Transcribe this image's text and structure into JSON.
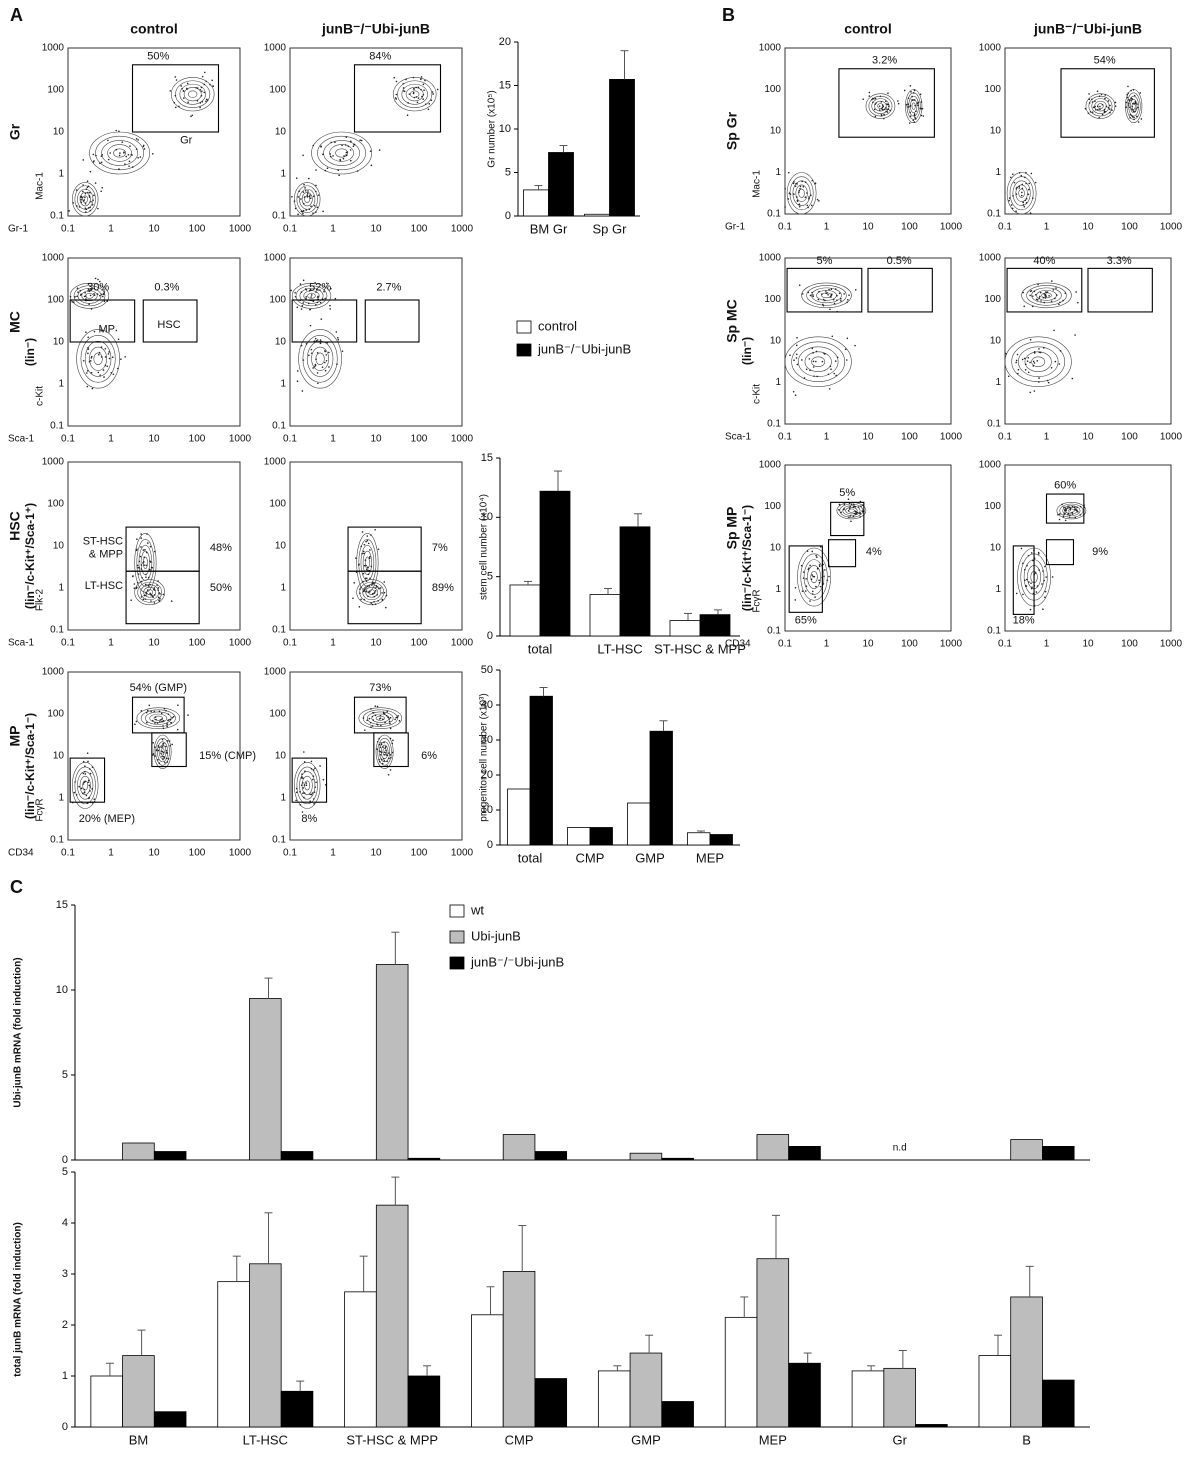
{
  "panels": {
    "a": "A",
    "b": "B",
    "c": "C"
  },
  "columns": {
    "control": "control",
    "junb": "junB⁻/⁻Ubi-junB"
  },
  "log_ticks": [
    0.1,
    1,
    10,
    100,
    1000
  ],
  "flow_plots": [
    {
      "row_label": "Gr",
      "y_axis": "Mac-1",
      "x_axis": "Gr-1",
      "control": [
        "50%",
        "Gr"
      ],
      "junb": [
        "84%"
      ]
    },
    {
      "row_label": "MC",
      "row_sub": "(lin⁻)",
      "y_axis": "c-Kit",
      "x_axis": "Sca-1",
      "control": [
        "30%",
        "0.3%",
        "MP",
        "HSC"
      ],
      "junb": [
        "52%",
        "2.7%"
      ]
    },
    {
      "row_label": "HSC",
      "row_sub": "(lin⁻/c-Kit⁺/Sca-1⁺)",
      "y_axis": "Flk-2",
      "x_axis": "Sca-1",
      "control": [
        "ST-HSC",
        "& MPP",
        "48%",
        "LT-HSC",
        "50%"
      ],
      "junb": [
        "7%",
        "89%"
      ]
    },
    {
      "row_label": "MP",
      "row_sub": "(lin⁻/c-Kit⁺/Sca-1⁻)",
      "y_axis": "FcγR",
      "x_axis": "CD34",
      "control": [
        "54% (GMP)",
        "15% (CMP)",
        "20% (MEP)"
      ],
      "junb": [
        "73%",
        "6%",
        "8%"
      ]
    },
    {
      "row_label": "Sp Gr",
      "y_axis": "Mac-1",
      "x_axis": "Gr-1",
      "control": [
        "3.2%"
      ],
      "junb": [
        "54%"
      ]
    },
    {
      "row_label": "Sp MC",
      "row_sub": "(lin⁻)",
      "y_axis": "c-Kit",
      "x_axis": "Sca-1",
      "control": [
        "5%",
        "0.5%"
      ],
      "junb": [
        "40%",
        "3.3%"
      ]
    },
    {
      "row_label": "Sp MP",
      "row_sub": "(lin⁻/c-Kit⁺/Sca-1⁻)",
      "y_axis": "FcγR",
      "x_axis": "CD34",
      "control": [
        "5%",
        "4%",
        "65%"
      ],
      "junb": [
        "60%",
        "9%",
        "18%"
      ]
    }
  ],
  "chart_data": [
    {
      "type": "bar",
      "y_label": "Gr number (x10⁵)",
      "categories": [
        "BM Gr",
        "Sp Gr"
      ],
      "ylim": [
        0,
        20
      ],
      "yticks": [
        0,
        5,
        10,
        15,
        20
      ],
      "series": [
        {
          "name": "control",
          "color": "#ffffff",
          "values": [
            3,
            0.2
          ],
          "errors": [
            0.5,
            null
          ]
        },
        {
          "name": "junB⁻/⁻Ubi-junB",
          "color": "#000000",
          "values": [
            7.3,
            15.7
          ],
          "errors": [
            0.8,
            3.3
          ]
        }
      ]
    },
    {
      "type": "bar",
      "y_label": "stem cell number (x10⁴)",
      "categories": [
        "total",
        "LT-HSC",
        "ST-HSC & MPP"
      ],
      "ylim": [
        0,
        15
      ],
      "yticks": [
        0,
        5,
        10,
        15
      ],
      "series": [
        {
          "color": "#ffffff",
          "values": [
            4.3,
            3.5,
            1.3
          ],
          "errors": [
            0.3,
            0.5,
            0.6
          ]
        },
        {
          "color": "#000000",
          "values": [
            12.2,
            9.2,
            1.8
          ],
          "errors": [
            1.7,
            1.1,
            0.4
          ]
        }
      ]
    },
    {
      "type": "bar",
      "y_label": "progenitor cell number (x10³)",
      "categories": [
        "total",
        "CMP",
        "GMP",
        "MEP"
      ],
      "ylim": [
        0,
        50
      ],
      "yticks": [
        0,
        10,
        20,
        30,
        40,
        50
      ],
      "series": [
        {
          "color": "#ffffff",
          "values": [
            16,
            5,
            12,
            3.5
          ],
          "errors": [
            null,
            null,
            null,
            0.5
          ]
        },
        {
          "color": "#000000",
          "values": [
            42.5,
            5,
            32.5,
            3
          ],
          "errors": [
            2.5,
            null,
            3,
            null
          ]
        }
      ]
    },
    {
      "type": "bar",
      "y_label": "Ubi-junB mRNA (fold induction)",
      "annotation": "n.d",
      "ylim": [
        0,
        15
      ],
      "yticks": [
        0,
        5,
        10,
        15
      ],
      "series": [
        {
          "name": "wt",
          "color": "#ffffff",
          "values": [
            null,
            null,
            null,
            null,
            null,
            null,
            null,
            null
          ]
        },
        {
          "name": "Ubi-junB",
          "color": "#bdbdbd",
          "values": [
            1,
            9.5,
            11.5,
            1.5,
            0.4,
            1.5,
            null,
            1.2
          ],
          "errors": [
            null,
            1.2,
            1.9,
            null,
            null,
            null,
            null,
            null
          ]
        },
        {
          "name": "junB⁻/⁻Ubi-junB",
          "color": "#000000",
          "values": [
            0.5,
            0.5,
            0.1,
            0.5,
            0.1,
            0.8,
            null,
            0.8
          ]
        }
      ]
    },
    {
      "type": "bar",
      "y_label": "total junB mRNA (fold induction)",
      "categories": [
        "BM",
        "LT-HSC",
        "ST-HSC & MPP",
        "CMP",
        "GMP",
        "MEP",
        "Gr",
        "B"
      ],
      "ylim": [
        0,
        5
      ],
      "yticks": [
        0,
        1,
        2,
        3,
        4,
        5
      ],
      "series": [
        {
          "color": "#ffffff",
          "values": [
            1,
            2.85,
            2.65,
            2.2,
            1.1,
            2.15,
            1.1,
            1.4
          ],
          "errors": [
            0.25,
            0.5,
            0.7,
            0.55,
            0.1,
            0.4,
            0.1,
            0.4
          ]
        },
        {
          "color": "#bdbdbd",
          "values": [
            1.4,
            3.2,
            4.35,
            3.05,
            1.45,
            3.3,
            1.15,
            2.55
          ],
          "errors": [
            0.5,
            1,
            0.55,
            0.9,
            0.35,
            0.85,
            0.35,
            0.6
          ]
        },
        {
          "color": "#000000",
          "values": [
            0.3,
            0.7,
            1,
            0.95,
            0.5,
            1.25,
            0.05,
            0.92
          ],
          "errors": [
            null,
            0.2,
            0.2,
            null,
            null,
            0.2,
            null,
            null
          ]
        }
      ]
    }
  ]
}
